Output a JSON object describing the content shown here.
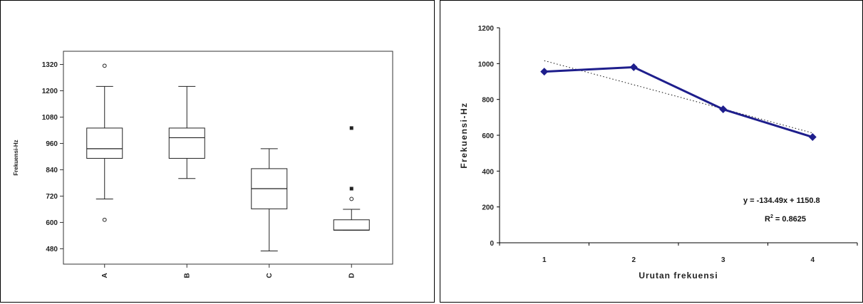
{
  "chart_data": [
    {
      "type": "boxplot",
      "ylabel": "Frekuensi-Hz",
      "xlabel": "",
      "ylim": [
        410,
        1380
      ],
      "yticks": [
        "480",
        "600",
        "720",
        "840",
        "960",
        "1080",
        "1200",
        "1320"
      ],
      "categories": [
        "A",
        "B",
        "C",
        "D"
      ],
      "boxes": [
        {
          "min": 707,
          "q1": 892,
          "median": 936,
          "q3": 1030,
          "max": 1220,
          "outliers": [
            612,
            1314
          ]
        },
        {
          "min": 800,
          "q1": 892,
          "median": 986,
          "q3": 1030,
          "max": 1220,
          "outliers": []
        },
        {
          "min": 470,
          "q1": 662,
          "median": 754,
          "q3": 845,
          "max": 936,
          "outliers": []
        },
        {
          "min": 565,
          "q1": 565,
          "median": 565,
          "q3": 612,
          "max": 660,
          "outliers": [
            707,
            754,
            1030
          ]
        }
      ],
      "grid": false,
      "legend": "none"
    },
    {
      "type": "line",
      "xlabel": "Urutan frekuensi",
      "ylabel": "Frekuensi-Hz",
      "x": [
        1,
        2,
        3,
        4
      ],
      "xticks": [
        "1",
        "2",
        "3",
        "4"
      ],
      "xlim": [
        0.5,
        4.5
      ],
      "ylim": [
        0,
        1200
      ],
      "yticks": [
        "0",
        "200",
        "400",
        "600",
        "800",
        "1000",
        "1200"
      ],
      "series": [
        {
          "values": [
            955,
            980,
            745,
            590
          ],
          "color": "#1e1e8c",
          "marker": "diamond"
        }
      ],
      "trendline": {
        "slope": -134.49,
        "intercept": 1150.8,
        "style": "dotted"
      },
      "equation": "y = -134.49x + 1150.8",
      "r2_label": "R",
      "r2_sup": "2",
      "r2_value": " = 0.8625",
      "grid": false,
      "legend": "none"
    }
  ]
}
